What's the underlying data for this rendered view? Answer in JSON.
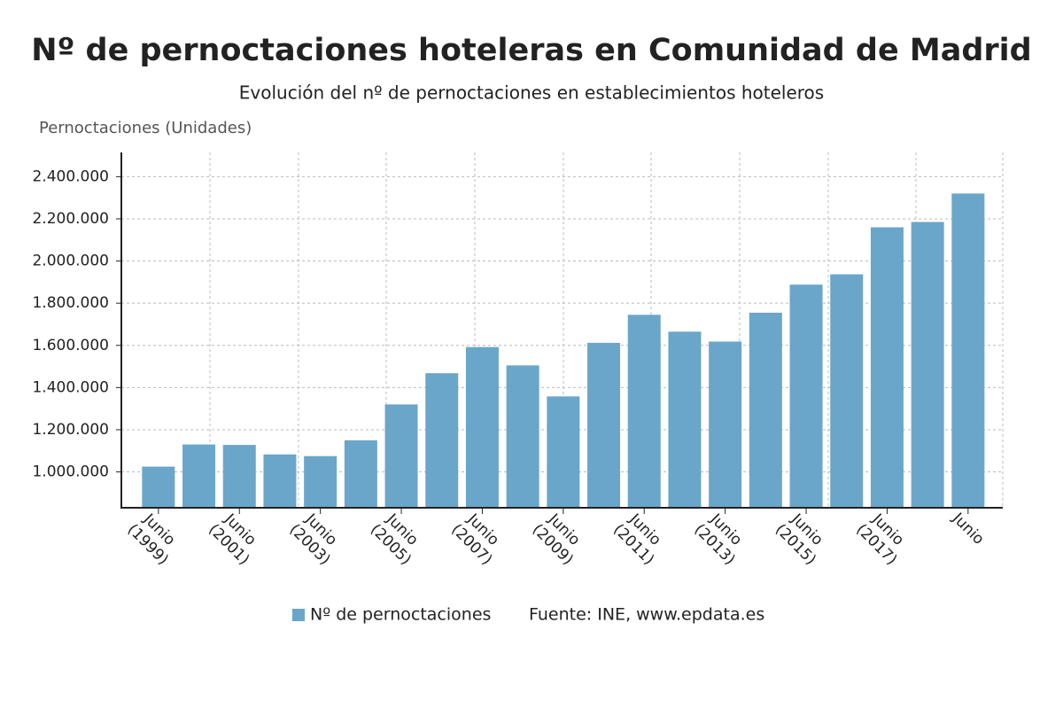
{
  "chart_data": {
    "type": "bar",
    "title": "Nº de pernoctaciones hoteleras en Comunidad de Madrid",
    "subtitle": "Evolución del nº de pernoctaciones en establecimientos hoteleros",
    "y_axis_label": "Pernoctaciones (Unidades)",
    "source": "Fuente: INE, www.epdata.es",
    "categories": [
      "Junio (1999)",
      null,
      "Junio (2001)",
      null,
      "Junio (2003)",
      null,
      "Junio (2005)",
      null,
      "Junio (2007)",
      null,
      "Junio (2009)",
      null,
      "Junio (2011)",
      null,
      "Junio (2013)",
      null,
      "Junio (2015)",
      null,
      "Junio (2017)",
      null,
      "Junio"
    ],
    "series": [
      {
        "name": "Nº de pernoctaciones",
        "color": "#6aa6c9",
        "values": [
          1025000,
          1130000,
          1128000,
          1083000,
          1075000,
          1150000,
          1320000,
          1468000,
          1592000,
          1505000,
          1358000,
          1612000,
          1745000,
          1665000,
          1618000,
          1755000,
          1888000,
          1937000,
          2160000,
          2185000,
          2320000
        ]
      }
    ],
    "ylim": [
      830000,
      2515000
    ],
    "yticks": [
      {
        "value": 1000000,
        "label": "1.000.000"
      },
      {
        "value": 1200000,
        "label": "1.200.000"
      },
      {
        "value": 1400000,
        "label": "1.400.000"
      },
      {
        "value": 1600000,
        "label": "1.600.000"
      },
      {
        "value": 1800000,
        "label": "1.800.000"
      },
      {
        "value": 2000000,
        "label": "2.000.000"
      },
      {
        "value": 2200000,
        "label": "2.200.000"
      },
      {
        "value": 2400000,
        "label": "2.400.000"
      }
    ],
    "grid": true
  }
}
